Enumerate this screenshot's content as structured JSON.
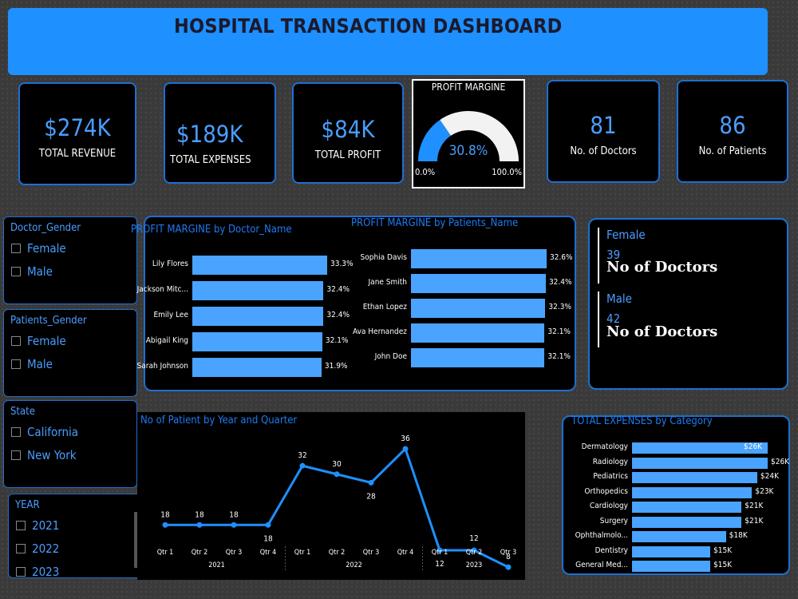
{
  "header": {
    "title": "HOSPITAL TRANSACTION DASHBOARD"
  },
  "kpis": [
    {
      "value": "$274K",
      "label": "TOTAL REVENUE"
    },
    {
      "value": "$189K",
      "label": "TOTAL EXPENSES"
    },
    {
      "value": "$84K",
      "label": "TOTAL PROFIT"
    },
    {
      "value": "81",
      "label": "No. of Doctors"
    },
    {
      "value": "86",
      "label": "No. of Patients"
    }
  ],
  "gauge": {
    "title": "PROFIT MARGINE",
    "value_label": "30.8%",
    "value": 30.8,
    "min_label": "0.0%",
    "max_label": "100.0%",
    "fill_color": "#1e90ff",
    "track_color": "#f2f2f2"
  },
  "slicers": {
    "doctor_gender": {
      "title": "Doctor_Gender",
      "options": [
        "Female",
        "Male"
      ]
    },
    "patients_gender": {
      "title": "Patients_Gender",
      "options": [
        "Female",
        "Male"
      ]
    },
    "state": {
      "title": "State",
      "options": [
        "California",
        "New York"
      ]
    },
    "year": {
      "title": "YEAR",
      "options": [
        "2021",
        "2022",
        "2023"
      ]
    }
  },
  "doctor_stats": {
    "female": {
      "heading": "Female",
      "count": "39",
      "label": "No of Doctors"
    },
    "male": {
      "heading": "Male",
      "count": "42",
      "label": "No of Doctors"
    }
  },
  "colors": {
    "accent": "#1e90ff",
    "bar": "#4aa3ff",
    "background": "#3a3a3a"
  },
  "chart_data": [
    {
      "type": "bar",
      "orientation": "horizontal",
      "title": "PROFIT MARGINE by Doctor_Name",
      "categories": [
        "Lily Flores",
        "Jackson Mitc...",
        "Emily Lee",
        "Abigail King",
        "Sarah Johnson"
      ],
      "values": [
        33.3,
        32.4,
        32.4,
        32.1,
        31.9
      ],
      "value_labels": [
        "33.3%",
        "32.4%",
        "32.4%",
        "32.1%",
        "31.9%"
      ]
    },
    {
      "type": "bar",
      "orientation": "horizontal",
      "title": "PROFIT MARGINE by Patients_Name",
      "categories": [
        "Sophia Davis",
        "Jane Smith",
        "Ethan Lopez",
        "Ava Hernandez",
        "John Doe"
      ],
      "values": [
        32.6,
        32.4,
        32.3,
        32.1,
        32.1
      ],
      "value_labels": [
        "32.6%",
        "32.4%",
        "32.3%",
        "32.1%",
        "32.1%"
      ]
    },
    {
      "type": "line",
      "title": "No of Patient by Year and Quarter",
      "x": [
        "Qtr 1",
        "Qtr 2",
        "Qtr 3",
        "Qtr 4",
        "Qtr 1",
        "Qtr 2",
        "Qtr 3",
        "Qtr 4",
        "Qtr 1",
        "Qtr 2",
        "Qtr 3"
      ],
      "groups": [
        {
          "name": "2021",
          "count": 4
        },
        {
          "name": "2022",
          "count": 4
        },
        {
          "name": "2023",
          "count": 3
        }
      ],
      "values": [
        18,
        18,
        18,
        18,
        32,
        30,
        28,
        36,
        12,
        12,
        8
      ],
      "ylim": [
        0,
        40
      ]
    },
    {
      "type": "bar",
      "orientation": "horizontal",
      "title": "TOTAL EXPENSES by Category",
      "categories": [
        "Dermatology",
        "Radiology",
        "Pediatrics",
        "Orthopedics",
        "Cardiology",
        "Surgery",
        "Ophthalmolo...",
        "Dentistry",
        "General Med..."
      ],
      "values": [
        26,
        26,
        24,
        23,
        21,
        21,
        18,
        15,
        15
      ],
      "value_labels": [
        "$26K",
        "$26K",
        "$24K",
        "$23K",
        "$21K",
        "$21K",
        "$18K",
        "$15K",
        "$15K"
      ]
    }
  ]
}
